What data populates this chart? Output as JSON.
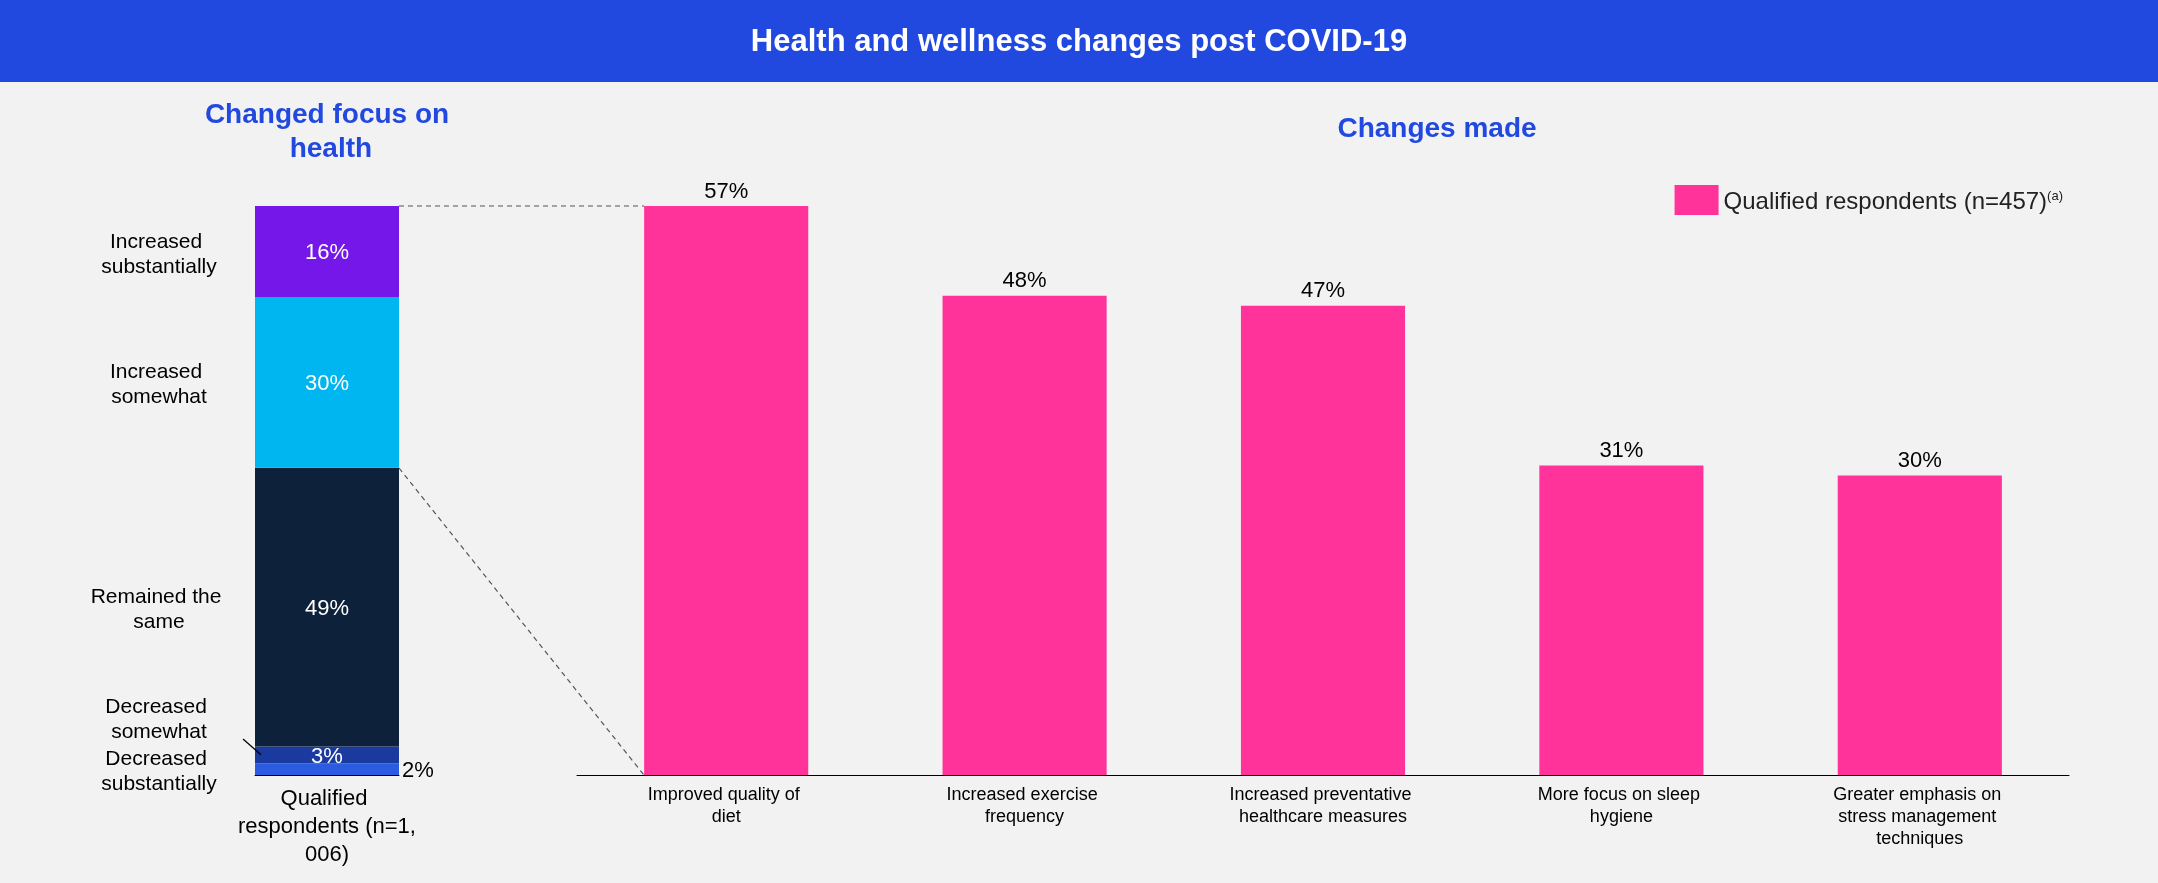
{
  "chart_data": [
    {
      "type": "bar",
      "stacked": true,
      "subtitle": "Changed focus on health",
      "categories": [
        "Qualified respondents (n=1,006)"
      ],
      "series": [
        {
          "name": "Decreased substantially",
          "color": "#2a5be0",
          "values": [
            2
          ],
          "value_labels": [
            "2%"
          ]
        },
        {
          "name": "Decreased somewhat",
          "color": "#1a3aa0",
          "values": [
            3
          ],
          "value_labels": [
            "3%"
          ]
        },
        {
          "name": "Remained the same",
          "color": "#0e213a",
          "values": [
            49
          ],
          "value_labels": [
            "49%"
          ]
        },
        {
          "name": "Increased somewhat",
          "color": "#00b6f0",
          "values": [
            30
          ],
          "value_labels": [
            "30%"
          ]
        },
        {
          "name": "Increased substantially",
          "color": "#7517e8",
          "values": [
            16
          ],
          "value_labels": [
            "16%"
          ]
        }
      ]
    },
    {
      "type": "bar",
      "title": "Health and wellness changes post COVID-19",
      "subtitle": "Changes made",
      "categories": [
        "Improved quality of diet",
        "Increased exercise frequency",
        "Increased preventative healthcare measures",
        "More focus on sleep hygiene",
        "Greater emphasis on stress management techniques"
      ],
      "legend": "top right",
      "series": [
        {
          "name": "Qualified respondents (n=457)$^{(a)}$",
          "color": "#ff3399",
          "values": [
            57,
            48,
            47,
            31,
            30
          ],
          "value_labels": [
            "57%",
            "48%",
            "47%",
            "31%",
            "30%"
          ]
        }
      ]
    }
  ]
}
